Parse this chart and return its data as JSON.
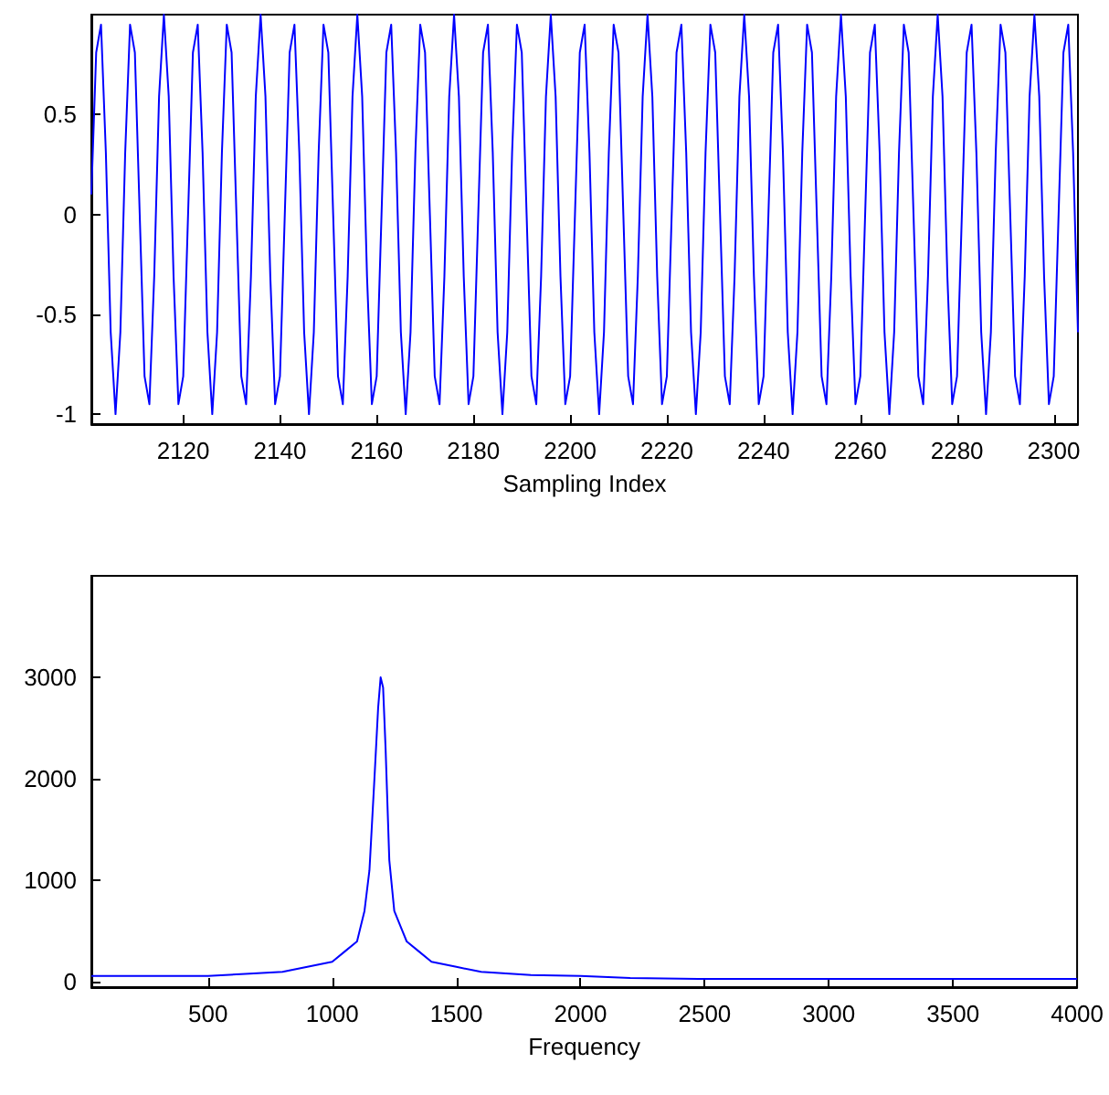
{
  "chart_data": [
    {
      "type": "line",
      "xlabel": "Sampling Index",
      "xlim": [
        2101,
        2305
      ],
      "xticks": [
        2120,
        2140,
        2160,
        2180,
        2200,
        2220,
        2240,
        2260,
        2280,
        2300
      ],
      "ylim": [
        -1.05,
        1
      ],
      "yticks": [
        -1,
        -0.5,
        0,
        0.5
      ],
      "grid": false,
      "marker": "none",
      "line_style": "solid",
      "x": [
        2101,
        2102,
        2103,
        2104,
        2105,
        2106,
        2107,
        2108,
        2109,
        2110,
        2111,
        2112,
        2113,
        2114,
        2115,
        2116,
        2117,
        2118,
        2119,
        2120,
        2121,
        2122,
        2123,
        2124,
        2125,
        2126,
        2127,
        2128,
        2129,
        2130,
        2131,
        2132,
        2133,
        2134,
        2135,
        2136,
        2137,
        2138,
        2139,
        2140,
        2141,
        2142,
        2143,
        2144,
        2145,
        2146,
        2147,
        2148,
        2149,
        2150,
        2151,
        2152,
        2153,
        2154,
        2155,
        2156,
        2157,
        2158,
        2159,
        2160,
        2161,
        2162,
        2163,
        2164,
        2165,
        2166,
        2167,
        2168,
        2169,
        2170,
        2171,
        2172,
        2173,
        2174,
        2175,
        2176,
        2177,
        2178,
        2179,
        2180,
        2181,
        2182,
        2183,
        2184,
        2185,
        2186,
        2187,
        2188,
        2189,
        2190,
        2191,
        2192,
        2193,
        2194,
        2195,
        2196,
        2197,
        2198,
        2199,
        2200,
        2201,
        2202,
        2203,
        2204,
        2205,
        2206,
        2207,
        2208,
        2209,
        2210,
        2211,
        2212,
        2213,
        2214,
        2215,
        2216,
        2217,
        2218,
        2219,
        2220,
        2221,
        2222,
        2223,
        2224,
        2225,
        2226,
        2227,
        2228,
        2229,
        2230,
        2231,
        2232,
        2233,
        2234,
        2235,
        2236,
        2237,
        2238,
        2239,
        2240,
        2241,
        2242,
        2243,
        2244,
        2245,
        2246,
        2247,
        2248,
        2249,
        2250,
        2251,
        2252,
        2253,
        2254,
        2255,
        2256,
        2257,
        2258,
        2259,
        2260,
        2261,
        2262,
        2263,
        2264,
        2265,
        2266,
        2267,
        2268,
        2269,
        2270,
        2271,
        2272,
        2273,
        2274,
        2275,
        2276,
        2277,
        2278,
        2279,
        2280,
        2281,
        2282,
        2283,
        2284,
        2285,
        2286,
        2287,
        2288,
        2289,
        2290,
        2291,
        2292,
        2293,
        2294,
        2295,
        2296,
        2297,
        2298,
        2299,
        2300,
        2301,
        2302,
        2303,
        2304,
        2305
      ],
      "series": [
        {
          "color": "#0000ff",
          "values": [
            0.1,
            0.81,
            0.95,
            0.31,
            -0.59,
            -1,
            -0.59,
            0.31,
            0.95,
            0.81,
            0,
            -0.81,
            -0.95,
            -0.31,
            0.59,
            1,
            0.59,
            -0.31,
            -0.95,
            -0.81,
            0,
            0.81,
            0.95,
            0.31,
            -0.59,
            -1,
            -0.59,
            0.31,
            0.95,
            0.81,
            0,
            -0.81,
            -0.95,
            -0.31,
            0.59,
            1,
            0.59,
            -0.31,
            -0.95,
            -0.81,
            0,
            0.81,
            0.95,
            0.31,
            -0.59,
            -1,
            -0.59,
            0.31,
            0.95,
            0.81,
            0,
            -0.81,
            -0.95,
            -0.31,
            0.59,
            1,
            0.59,
            -0.31,
            -0.95,
            -0.81,
            0,
            0.81,
            0.95,
            0.31,
            -0.59,
            -1,
            -0.59,
            0.31,
            0.95,
            0.81,
            0,
            -0.81,
            -0.95,
            -0.31,
            0.59,
            1,
            0.59,
            -0.31,
            -0.95,
            -0.81,
            0,
            0.81,
            0.95,
            0.31,
            -0.59,
            -1,
            -0.59,
            0.31,
            0.95,
            0.81,
            0,
            -0.81,
            -0.95,
            -0.31,
            0.59,
            1,
            0.59,
            -0.31,
            -0.95,
            -0.81,
            0,
            0.81,
            0.95,
            0.31,
            -0.59,
            -1,
            -0.59,
            0.31,
            0.95,
            0.81,
            0,
            -0.81,
            -0.95,
            -0.31,
            0.59,
            1,
            0.59,
            -0.31,
            -0.95,
            -0.81,
            0,
            0.81,
            0.95,
            0.31,
            -0.59,
            -1,
            -0.59,
            0.31,
            0.95,
            0.81,
            0,
            -0.81,
            -0.95,
            -0.31,
            0.59,
            1,
            0.59,
            -0.31,
            -0.95,
            -0.81,
            0,
            0.81,
            0.95,
            0.31,
            -0.59,
            -1,
            -0.59,
            0.31,
            0.95,
            0.81,
            0,
            -0.81,
            -0.95,
            -0.31,
            0.59,
            1,
            0.59,
            -0.31,
            -0.95,
            -0.81,
            0,
            0.81,
            0.95,
            0.31,
            -0.59,
            -1,
            -0.59,
            0.31,
            0.95,
            0.81,
            0,
            -0.81,
            -0.95,
            -0.31,
            0.59,
            1,
            0.59,
            -0.31,
            -0.95,
            -0.81,
            0,
            0.81,
            0.95,
            0.31,
            -0.59,
            -1,
            -0.59,
            0.31,
            0.95,
            0.81,
            0,
            -0.81,
            -0.95,
            -0.31,
            0.59,
            1,
            0.59,
            -0.31,
            -0.95,
            -0.81,
            0,
            0.81,
            0.95,
            0.31,
            -0.59
          ]
        }
      ]
    },
    {
      "type": "line",
      "xlabel": "Frequency",
      "xlim": [
        30,
        4000
      ],
      "xticks": [
        500,
        1000,
        1500,
        2000,
        2500,
        3000,
        3500,
        4000
      ],
      "ylim": [
        -50,
        4000
      ],
      "yticks": [
        0,
        1000,
        2000,
        3000
      ],
      "grid": false,
      "marker": "none",
      "line_style": "solid",
      "x": [
        30,
        500,
        650,
        800,
        900,
        1000,
        1050,
        1100,
        1130,
        1150,
        1170,
        1185,
        1195,
        1205,
        1215,
        1230,
        1250,
        1300,
        1350,
        1400,
        1500,
        1600,
        1800,
        2000,
        2200,
        2500,
        3000,
        3500,
        4000
      ],
      "series": [
        {
          "color": "#0000ff",
          "values": [
            60,
            60,
            80,
            100,
            150,
            200,
            300,
            400,
            700,
            1100,
            2000,
            2700,
            3000,
            2900,
            2300,
            1200,
            700,
            400,
            300,
            200,
            150,
            100,
            70,
            60,
            40,
            30,
            30,
            30,
            30
          ]
        }
      ]
    }
  ]
}
